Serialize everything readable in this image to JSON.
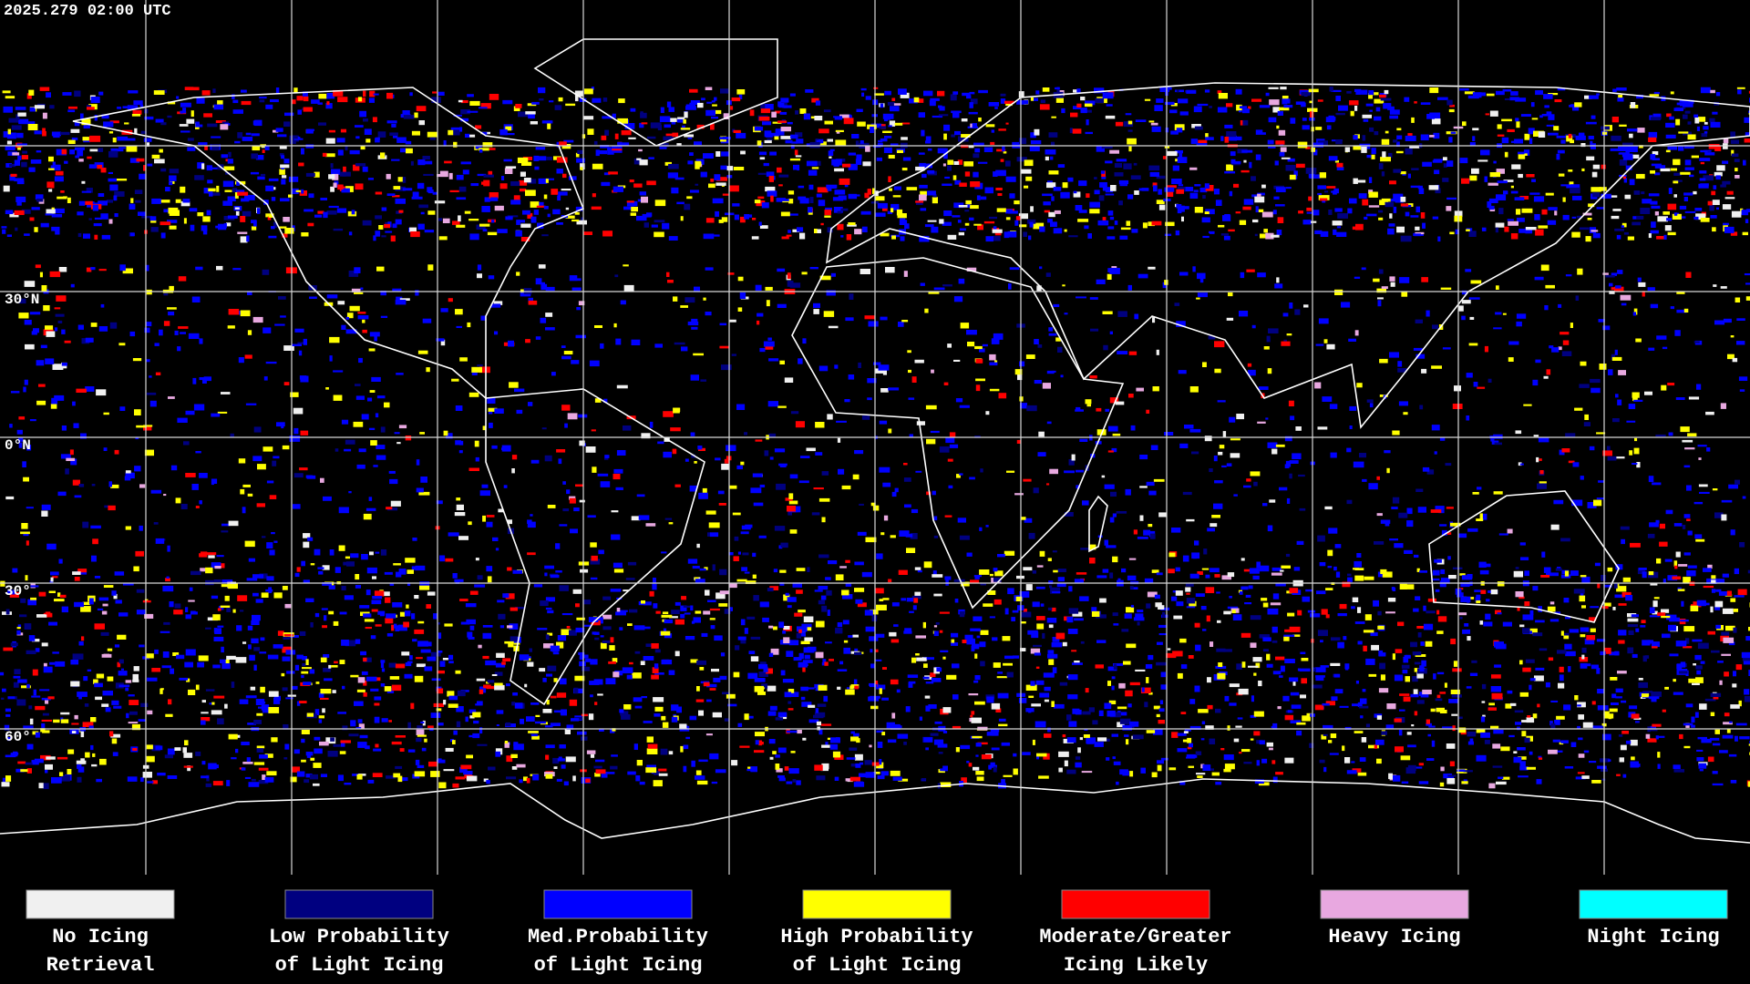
{
  "header": {
    "timestamp": "2025.279 02:00 UTC"
  },
  "latitude_labels": [
    "30°N",
    "0°N",
    "30°",
    "60°"
  ],
  "legend": [
    {
      "label_lines": [
        "No Icing",
        "Retrieval"
      ],
      "color": "#f0f0f0"
    },
    {
      "label_lines": [
        "Low Probability",
        "of Light Icing"
      ],
      "color": "#000080"
    },
    {
      "label_lines": [
        "Med.Probability",
        "of Light Icing"
      ],
      "color": "#0000ff"
    },
    {
      "label_lines": [
        "High Probability",
        "of Light Icing"
      ],
      "color": "#ffff00"
    },
    {
      "label_lines": [
        "Moderate/Greater",
        "Icing Likely"
      ],
      "color": "#ff0000"
    },
    {
      "label_lines": [
        "Heavy Icing"
      ],
      "color": "#e8a8e0"
    },
    {
      "label_lines": [
        "Night Icing"
      ],
      "color": "#00ffff"
    }
  ]
}
